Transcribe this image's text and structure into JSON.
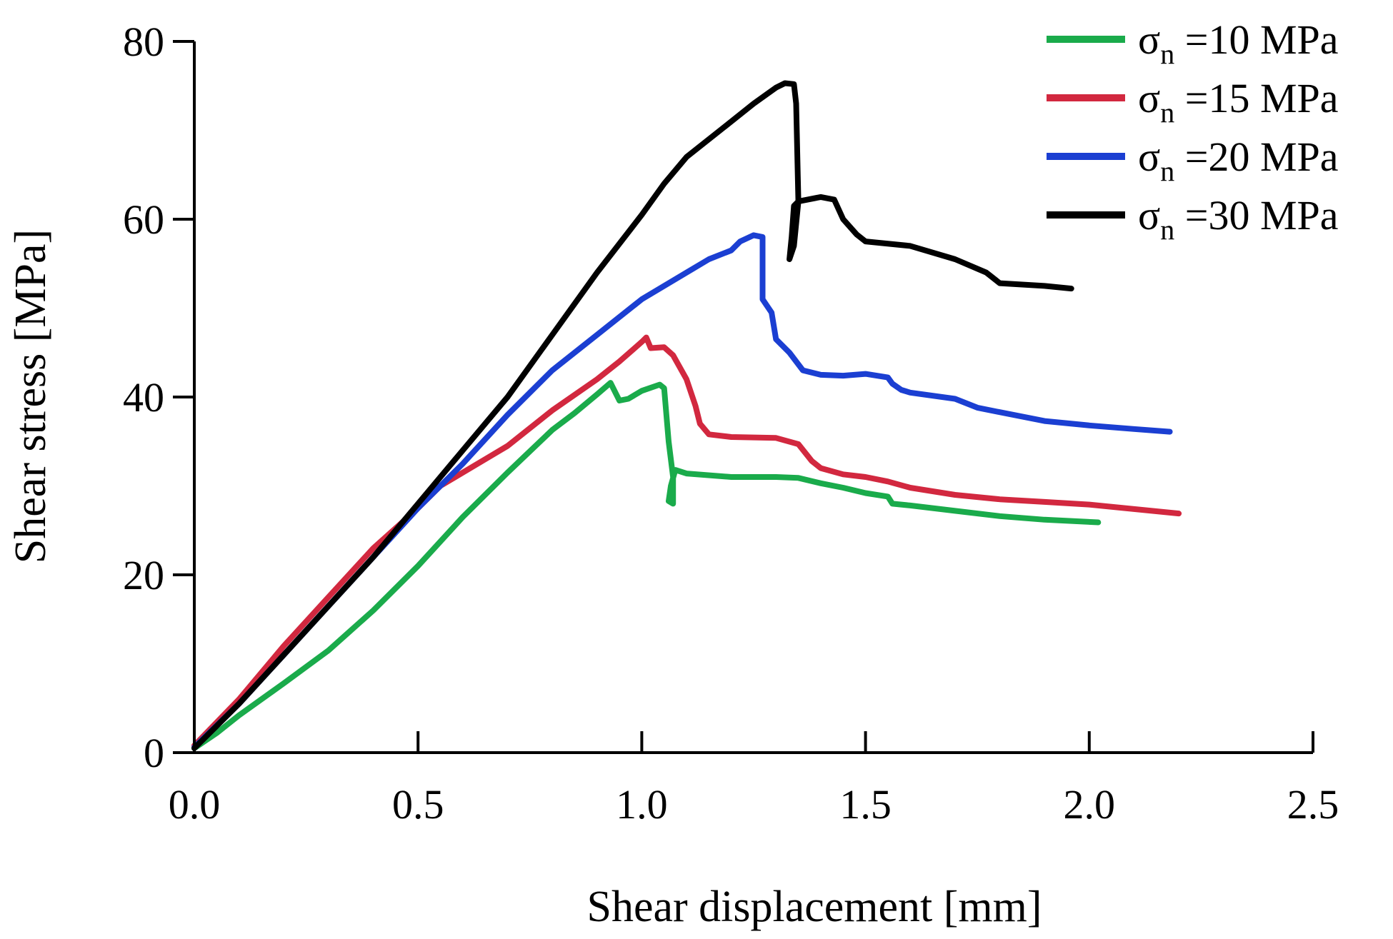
{
  "chart_data": {
    "type": "line",
    "title": "",
    "xlabel": "Shear displacement [mm]",
    "ylabel": "Shear stress [MPa]",
    "xlim": [
      0,
      2.5
    ],
    "ylim": [
      0,
      80
    ],
    "xticks": [
      0,
      0.5,
      1.0,
      1.5,
      2.0,
      2.5
    ],
    "xtick_labels": [
      "0.0",
      "0.5",
      "1.0",
      "1.5",
      "2.0",
      "2.5"
    ],
    "yticks": [
      0,
      20,
      40,
      60,
      80
    ],
    "ytick_labels": [
      "0",
      "20",
      "40",
      "60",
      "80"
    ],
    "legend_position": "top-right",
    "series": [
      {
        "name": "σn =10 MPa",
        "symbol": "σ",
        "subscript": "n",
        "rest": " =10 MPa",
        "color": "#1aab4b",
        "points": [
          [
            0,
            0.5
          ],
          [
            0.05,
            2.2
          ],
          [
            0.1,
            4.2
          ],
          [
            0.2,
            7.8
          ],
          [
            0.3,
            11.5
          ],
          [
            0.4,
            16
          ],
          [
            0.5,
            21
          ],
          [
            0.6,
            26.5
          ],
          [
            0.7,
            31.5
          ],
          [
            0.8,
            36.3
          ],
          [
            0.85,
            38.2
          ],
          [
            0.9,
            40.3
          ],
          [
            0.93,
            41.6
          ],
          [
            0.95,
            39.6
          ],
          [
            0.97,
            39.8
          ],
          [
            1.0,
            40.7
          ],
          [
            1.04,
            41.4
          ],
          [
            1.05,
            41
          ],
          [
            1.06,
            35
          ],
          [
            1.07,
            31
          ],
          [
            1.07,
            28
          ],
          [
            1.06,
            28.3
          ],
          [
            1.065,
            30
          ],
          [
            1.075,
            31.8
          ],
          [
            1.1,
            31.4
          ],
          [
            1.2,
            31
          ],
          [
            1.3,
            31
          ],
          [
            1.35,
            30.9
          ],
          [
            1.4,
            30.3
          ],
          [
            1.45,
            29.8
          ],
          [
            1.5,
            29.2
          ],
          [
            1.55,
            28.8
          ],
          [
            1.56,
            28
          ],
          [
            1.6,
            27.8
          ],
          [
            1.7,
            27.2
          ],
          [
            1.8,
            26.6
          ],
          [
            1.9,
            26.2
          ],
          [
            2.02,
            25.9
          ]
        ]
      },
      {
        "name": "σn =15 MPa",
        "symbol": "σ",
        "subscript": "n",
        "rest": " =15 MPa",
        "color": "#d2283f",
        "points": [
          [
            0,
            0.8
          ],
          [
            0.1,
            6
          ],
          [
            0.2,
            12
          ],
          [
            0.3,
            17.5
          ],
          [
            0.4,
            23
          ],
          [
            0.5,
            27.5
          ],
          [
            0.55,
            30
          ],
          [
            0.6,
            31.5
          ],
          [
            0.7,
            34.5
          ],
          [
            0.8,
            38.5
          ],
          [
            0.9,
            42
          ],
          [
            0.95,
            44
          ],
          [
            1.0,
            46.2
          ],
          [
            1.01,
            46.7
          ],
          [
            1.02,
            45.5
          ],
          [
            1.05,
            45.6
          ],
          [
            1.07,
            44.7
          ],
          [
            1.1,
            42
          ],
          [
            1.12,
            39
          ],
          [
            1.13,
            37
          ],
          [
            1.15,
            35.8
          ],
          [
            1.2,
            35.5
          ],
          [
            1.3,
            35.4
          ],
          [
            1.35,
            34.7
          ],
          [
            1.38,
            32.8
          ],
          [
            1.4,
            32
          ],
          [
            1.45,
            31.3
          ],
          [
            1.5,
            31
          ],
          [
            1.55,
            30.5
          ],
          [
            1.6,
            29.8
          ],
          [
            1.7,
            29
          ],
          [
            1.8,
            28.5
          ],
          [
            1.9,
            28.2
          ],
          [
            2.0,
            27.9
          ],
          [
            2.1,
            27.4
          ],
          [
            2.2,
            26.9
          ]
        ]
      },
      {
        "name": "σn =20 MPa",
        "symbol": "σ",
        "subscript": "n",
        "rest": " =20 MPa",
        "color": "#1b3fd2",
        "points": [
          [
            0,
            0.6
          ],
          [
            0.1,
            5.5
          ],
          [
            0.2,
            11
          ],
          [
            0.3,
            16.5
          ],
          [
            0.4,
            22
          ],
          [
            0.5,
            27.5
          ],
          [
            0.6,
            32.5
          ],
          [
            0.7,
            38
          ],
          [
            0.8,
            43
          ],
          [
            0.9,
            47
          ],
          [
            1.0,
            51
          ],
          [
            1.1,
            54
          ],
          [
            1.15,
            55.5
          ],
          [
            1.2,
            56.5
          ],
          [
            1.22,
            57.5
          ],
          [
            1.25,
            58.2
          ],
          [
            1.27,
            58
          ],
          [
            1.27,
            51
          ],
          [
            1.29,
            49.5
          ],
          [
            1.3,
            46.5
          ],
          [
            1.33,
            45
          ],
          [
            1.36,
            43
          ],
          [
            1.4,
            42.5
          ],
          [
            1.45,
            42.4
          ],
          [
            1.5,
            42.6
          ],
          [
            1.55,
            42.2
          ],
          [
            1.56,
            41.5
          ],
          [
            1.58,
            40.8
          ],
          [
            1.6,
            40.5
          ],
          [
            1.7,
            39.8
          ],
          [
            1.75,
            38.8
          ],
          [
            1.8,
            38.3
          ],
          [
            1.9,
            37.3
          ],
          [
            2.0,
            36.8
          ],
          [
            2.1,
            36.4
          ],
          [
            2.18,
            36.1
          ]
        ]
      },
      {
        "name": "σn =30 MPa",
        "symbol": "σ",
        "subscript": "n",
        "rest": " =30 MPa",
        "color": "#000000",
        "points": [
          [
            0,
            0.5
          ],
          [
            0.1,
            5.5
          ],
          [
            0.2,
            11
          ],
          [
            0.3,
            16.5
          ],
          [
            0.4,
            22
          ],
          [
            0.5,
            28
          ],
          [
            0.6,
            34
          ],
          [
            0.7,
            40
          ],
          [
            0.8,
            47
          ],
          [
            0.9,
            54
          ],
          [
            1.0,
            60.5
          ],
          [
            1.05,
            64
          ],
          [
            1.1,
            67
          ],
          [
            1.2,
            71
          ],
          [
            1.25,
            73
          ],
          [
            1.3,
            74.8
          ],
          [
            1.32,
            75.3
          ],
          [
            1.34,
            75.2
          ],
          [
            1.345,
            73
          ],
          [
            1.35,
            62
          ],
          [
            1.34,
            57
          ],
          [
            1.33,
            55.5
          ],
          [
            1.335,
            58
          ],
          [
            1.34,
            61.5
          ],
          [
            1.35,
            62
          ],
          [
            1.4,
            62.5
          ],
          [
            1.43,
            62.2
          ],
          [
            1.45,
            60
          ],
          [
            1.48,
            58.3
          ],
          [
            1.5,
            57.5
          ],
          [
            1.6,
            57
          ],
          [
            1.7,
            55.5
          ],
          [
            1.77,
            54
          ],
          [
            1.8,
            52.8
          ],
          [
            1.9,
            52.5
          ],
          [
            1.96,
            52.2
          ]
        ]
      }
    ]
  }
}
